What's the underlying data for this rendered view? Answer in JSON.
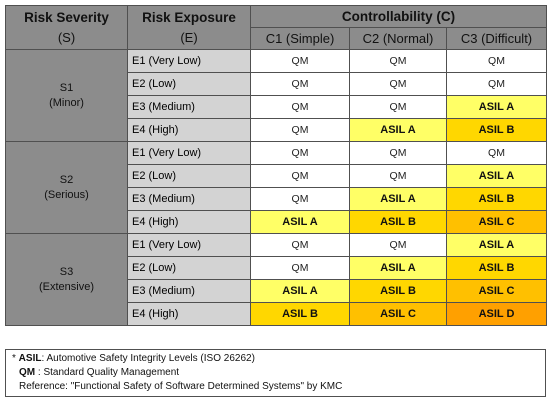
{
  "header": {
    "severity_title": "Risk Severity",
    "severity_symbol": "(S)",
    "exposure_title": "Risk Exposure",
    "exposure_symbol": "(E)",
    "controllability_title": "Controllability (C)",
    "c_columns": [
      "C1 (Simple)",
      "C2 (Normal)",
      "C3 (Difficult)"
    ]
  },
  "groups": [
    {
      "code": "S1",
      "name": "(Minor)",
      "rows": [
        {
          "exposure": "E1 (Very Low)",
          "cells": [
            "QM",
            "QM",
            "QM"
          ]
        },
        {
          "exposure": "E2 (Low)",
          "cells": [
            "QM",
            "QM",
            "QM"
          ]
        },
        {
          "exposure": "E3 (Medium)",
          "cells": [
            "QM",
            "QM",
            "ASIL A"
          ]
        },
        {
          "exposure": "E4 (High)",
          "cells": [
            "QM",
            "ASIL A",
            "ASIL B"
          ]
        }
      ]
    },
    {
      "code": "S2",
      "name": "(Serious)",
      "rows": [
        {
          "exposure": "E1 (Very Low)",
          "cells": [
            "QM",
            "QM",
            "QM"
          ]
        },
        {
          "exposure": "E2 (Low)",
          "cells": [
            "QM",
            "QM",
            "ASIL A"
          ]
        },
        {
          "exposure": "E3 (Medium)",
          "cells": [
            "QM",
            "ASIL A",
            "ASIL B"
          ]
        },
        {
          "exposure": "E4 (High)",
          "cells": [
            "ASIL A",
            "ASIL B",
            "ASIL C"
          ]
        }
      ]
    },
    {
      "code": "S3",
      "name": "(Extensive)",
      "rows": [
        {
          "exposure": "E1 (Very Low)",
          "cells": [
            "QM",
            "QM",
            "ASIL A"
          ]
        },
        {
          "exposure": "E2 (Low)",
          "cells": [
            "QM",
            "ASIL A",
            "ASIL B"
          ]
        },
        {
          "exposure": "E3 (Medium)",
          "cells": [
            "ASIL A",
            "ASIL B",
            "ASIL C"
          ]
        },
        {
          "exposure": "E4 (High)",
          "cells": [
            "ASIL B",
            "ASIL C",
            "ASIL D"
          ]
        }
      ]
    }
  ],
  "level_colors": {
    "QM": "#ffffff",
    "ASIL A": "#ffff66",
    "ASIL B": "#ffd700",
    "ASIL C": "#ffc000",
    "ASIL D": "#ffa000"
  },
  "footer": {
    "line1_prefix": "* ",
    "line1_term": "ASIL",
    "line1_text": ": Automotive Safety Integrity Levels (ISO 26262)",
    "line2_term": "QM",
    "line2_text": " : Standard Quality Management",
    "line3": "Reference:  \"Functional Safety of Software Determined Systems\" by KMC"
  }
}
